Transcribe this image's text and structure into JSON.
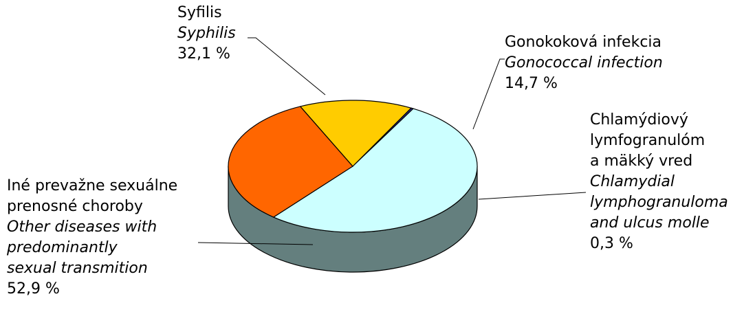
{
  "chart_data": {
    "type": "pie",
    "title": "",
    "slices": [
      {
        "name_sk": [
          "Syfilis"
        ],
        "name_en": [
          "Syphilis"
        ],
        "value": 32.1,
        "value_label": "32,1 %",
        "color": "#ff6600"
      },
      {
        "name_sk": [
          "Gonokoková infekcia"
        ],
        "name_en": [
          "Gonococcal infection"
        ],
        "value": 14.7,
        "value_label": "14,7 %",
        "color": "#ffcc00"
      },
      {
        "name_sk": [
          "Chlamýdiový",
          "lymfogranulóm",
          "a mäkký vred"
        ],
        "name_en": [
          "Chlamydial",
          "lymphogranuloma",
          "and ulcus molle"
        ],
        "value": 0.3,
        "value_label": "0,3 %",
        "color": "#333399"
      },
      {
        "name_sk": [
          "Iné prevažne sexuálne",
          "prenosné choroby"
        ],
        "name_en": [
          "Other diseases with",
          "predominantly",
          "sexual transmition"
        ],
        "value": 52.9,
        "value_label": "52,9 %",
        "color": "#ccffff"
      }
    ],
    "side_color": "#647f7e"
  }
}
